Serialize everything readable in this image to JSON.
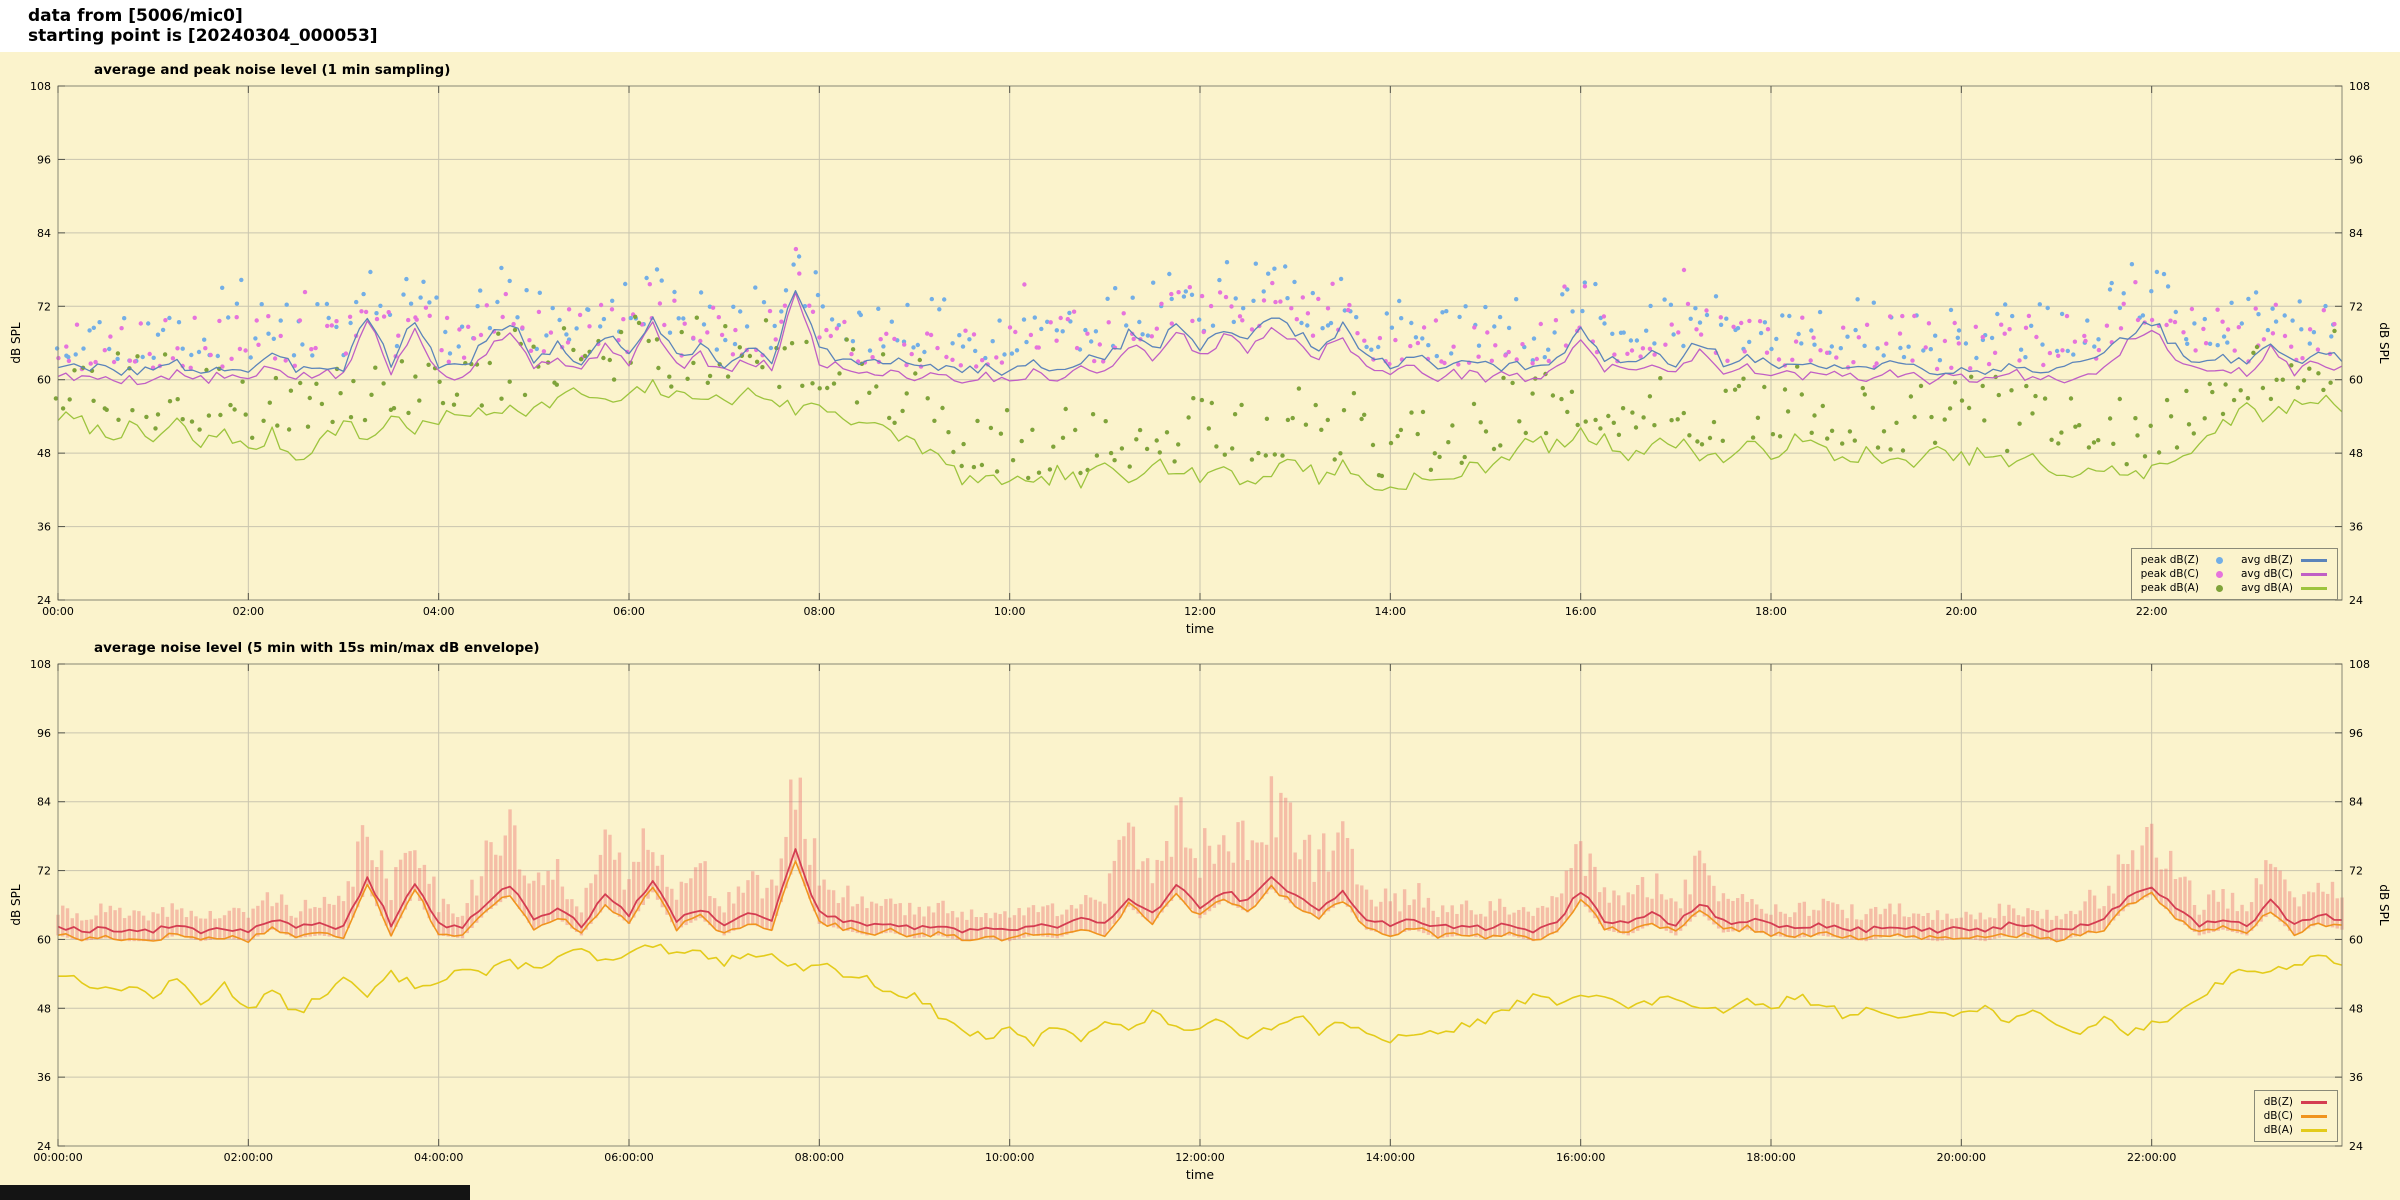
{
  "header": {
    "line1": "data from [5006/mic0]",
    "line2": "starting point is [20240304_000053]"
  },
  "colors": {
    "page_bg": "#ffffff",
    "plot_bg": "#fbf3cc",
    "grid": "#c9c5ae",
    "border": "#878775",
    "avg_dbz": "#5b84ba",
    "avg_dbc": "#c05fc5",
    "avg_dba": "#9dc43e",
    "peak_dbz": "#72aee6",
    "peak_dbc": "#e673dc",
    "peak_dba": "#7fa33a",
    "dbz_line": "#d43d51",
    "dbc_line": "#f0941e",
    "dba_line": "#e3cb1a",
    "envelope": "rgba(235,115,115,0.42)",
    "bottom_bar": "#141414"
  },
  "series_values": {
    "comment": "values sampled every 15 minutes from 00:00 to 24:00 (97 points), dB SPL",
    "dbz_avg": [
      62.5,
      61.5,
      62,
      61.5,
      61.5,
      62.5,
      61.5,
      62,
      61.5,
      63.5,
      62,
      62.5,
      62,
      71,
      62.5,
      70,
      62.5,
      62,
      66.5,
      69.5,
      63.5,
      65.5,
      62.5,
      67.5,
      64.5,
      70,
      63.5,
      65.5,
      62.5,
      64.5,
      63.5,
      75.5,
      64.5,
      63.5,
      62.5,
      63,
      62,
      62.5,
      61.5,
      62,
      61.5,
      62.5,
      62,
      63.5,
      62.5,
      67.5,
      64.5,
      69.5,
      65.5,
      68.5,
      66.5,
      70.5,
      67.5,
      65.5,
      68.5,
      63.5,
      62.5,
      63.5,
      62,
      62.5,
      62,
      62.5,
      61.5,
      63,
      68.5,
      63.5,
      62.5,
      64.5,
      62.5,
      66.5,
      63,
      63.5,
      62.5,
      62,
      62.5,
      62,
      61.5,
      62.5,
      62,
      61.5,
      62,
      61.5,
      62.5,
      62,
      61.5,
      62.5,
      63.5,
      67.5,
      69.5,
      65.5,
      62.5,
      63.5,
      62.5,
      66.5,
      62.5,
      64.5,
      63.5
    ],
    "dbc_avg": [
      61,
      60,
      60.5,
      60,
      60,
      61,
      60,
      60.5,
      60,
      62,
      60.5,
      61,
      60.5,
      70,
      61,
      69,
      61,
      60.5,
      65,
      68,
      62,
      64,
      61,
      66,
      63,
      69,
      62,
      64,
      61,
      63,
      62,
      74,
      63,
      62,
      61,
      61.5,
      60.5,
      61,
      60,
      60.5,
      60,
      61,
      60.5,
      62,
      61,
      66,
      63,
      68,
      64,
      67,
      65,
      69,
      66,
      64,
      67,
      62,
      61,
      62,
      60.5,
      61,
      60.5,
      61,
      60,
      61.5,
      67,
      62,
      61,
      63,
      61,
      65,
      61.5,
      62,
      61,
      60.5,
      61,
      60.5,
      60,
      61,
      60.5,
      60,
      60.5,
      60,
      61,
      60.5,
      60,
      61,
      62,
      66,
      68,
      64,
      61,
      62,
      61,
      65,
      61,
      63,
      62
    ],
    "dba_avg": [
      54,
      53,
      51,
      52,
      50,
      53,
      49,
      52,
      48,
      51,
      47,
      50,
      53,
      50,
      54,
      52,
      53,
      55,
      54,
      56,
      55,
      57,
      58,
      56,
      57,
      59,
      57,
      58,
      56,
      58,
      57,
      55,
      56,
      54,
      53,
      51,
      50,
      47,
      44,
      43,
      44,
      42,
      45,
      43,
      46,
      44,
      47,
      45,
      44,
      46,
      43,
      45,
      47,
      44,
      46,
      43,
      42,
      44,
      43,
      45,
      46,
      48,
      50,
      49,
      51,
      50,
      48,
      49,
      50,
      48,
      47,
      49,
      48,
      50,
      49,
      47,
      48,
      46,
      47,
      48,
      47,
      48,
      46,
      47,
      45,
      44,
      46,
      44,
      45,
      47,
      50,
      53,
      55,
      54,
      56,
      57,
      56
    ],
    "env_up": [
      3,
      3,
      4,
      3,
      3,
      4,
      3,
      3,
      4,
      5,
      4,
      4,
      5,
      12,
      6,
      12,
      5,
      4,
      10,
      12,
      6,
      9,
      5,
      10,
      8,
      12,
      6,
      8,
      5,
      7,
      6,
      14,
      8,
      6,
      5,
      5,
      4,
      4,
      3,
      4,
      3,
      4,
      4,
      6,
      5,
      14,
      10,
      15,
      12,
      14,
      12,
      15,
      13,
      10,
      12,
      7,
      5,
      6,
      4,
      5,
      4,
      4,
      3,
      5,
      10,
      6,
      5,
      7,
      5,
      9,
      5,
      6,
      4,
      4,
      4,
      4,
      3,
      4,
      3,
      3,
      3,
      3,
      4,
      3,
      3,
      4,
      6,
      9,
      10,
      8,
      5,
      5,
      4,
      8,
      5,
      6,
      5
    ]
  },
  "chart_data": [
    {
      "type": "line",
      "title": "average and peak noise level (1 min sampling)",
      "xlabel": "time",
      "ylabel": "dB SPL",
      "ylim": [
        24,
        108
      ],
      "yticks": [
        24,
        36,
        48,
        60,
        72,
        84,
        96,
        108
      ],
      "xlim_minutes": [
        0,
        1440
      ],
      "xtick_minutes": [
        0,
        120,
        240,
        360,
        480,
        600,
        720,
        840,
        960,
        1080,
        1200,
        1320
      ],
      "xtick_labels": [
        "00:00",
        "02:00",
        "04:00",
        "06:00",
        "08:00",
        "10:00",
        "12:00",
        "14:00",
        "16:00",
        "18:00",
        "20:00",
        "22:00"
      ],
      "grid": true,
      "sample_step_min": 15,
      "legend": {
        "position": "bottom-right",
        "columns": [
          [
            "peak dB(Z)",
            "peak dB(C)",
            "peak dB(A)"
          ],
          [
            "avg dB(Z)",
            "avg dB(C)",
            "avg dB(A)"
          ]
        ]
      },
      "series": [
        {
          "name": "peak dB(Z)",
          "type": "scatter",
          "color": "#72aee6",
          "values_key": "dbz_avg",
          "offset": [
            1.5,
            11
          ],
          "outlier_extra": 9,
          "seed": 11
        },
        {
          "name": "peak dB(C)",
          "type": "scatter",
          "color": "#e673dc",
          "values_key": "dbc_avg",
          "offset": [
            1.5,
            10
          ],
          "outlier_extra": 8,
          "seed": 23
        },
        {
          "name": "peak dB(A)",
          "type": "scatter",
          "color": "#7fa33a",
          "values_key": "dba_avg",
          "offset": [
            1.5,
            13
          ],
          "outlier_extra": 6,
          "seed": 37
        },
        {
          "name": "avg dB(A)",
          "type": "line",
          "color": "#9dc43e",
          "values_key": "dba_avg",
          "jitter": 1.3,
          "seed": 7,
          "width": 1.3
        },
        {
          "name": "avg dB(C)",
          "type": "line",
          "color": "#c05fc5",
          "values_key": "dbc_avg",
          "jitter": 0.9,
          "seed": 5,
          "width": 1.3
        },
        {
          "name": "avg dB(Z)",
          "type": "line",
          "color": "#5b84ba",
          "values_key": "dbz_avg",
          "jitter": 1.0,
          "seed": 3,
          "width": 1.3
        }
      ]
    },
    {
      "type": "line",
      "title": "average noise level (5 min with 15s min/max dB envelope)",
      "xlabel": "time",
      "ylabel": "dB SPL",
      "ylim": [
        24,
        108
      ],
      "yticks": [
        24,
        36,
        48,
        60,
        72,
        84,
        96,
        108
      ],
      "xlim_minutes": [
        0,
        1440
      ],
      "xtick_minutes": [
        0,
        120,
        240,
        360,
        480,
        600,
        720,
        840,
        960,
        1080,
        1200,
        1320
      ],
      "xtick_labels": [
        "00:00:00",
        "02:00:00",
        "04:00:00",
        "06:00:00",
        "08:00:00",
        "10:00:00",
        "12:00:00",
        "14:00:00",
        "16:00:00",
        "18:00:00",
        "20:00:00",
        "22:00:00"
      ],
      "grid": true,
      "sample_step_min": 15,
      "legend": {
        "position": "bottom-right",
        "columns": [
          [
            "dB(Z)",
            "dB(C)",
            "dB(A)"
          ]
        ]
      },
      "series": [
        {
          "name": "envelope",
          "type": "envelope",
          "color": "rgba(235,115,115,0.42)",
          "values_key": "dbz_avg",
          "up_key": "env_up",
          "down": 1.8,
          "seed": 41
        },
        {
          "name": "dB(A)",
          "type": "line",
          "color": "#e3cb1a",
          "values_key": "dba_avg",
          "jitter": 0.8,
          "seed": 13,
          "width": 1.6
        },
        {
          "name": "dB(C)",
          "type": "line",
          "color": "#f0941e",
          "values_key": "dbc_avg",
          "jitter": 0.5,
          "seed": 17,
          "width": 1.6
        },
        {
          "name": "dB(Z)",
          "type": "line",
          "color": "#d43d51",
          "values_key": "dbz_avg",
          "jitter": 0.5,
          "seed": 19,
          "width": 1.8
        }
      ]
    }
  ]
}
